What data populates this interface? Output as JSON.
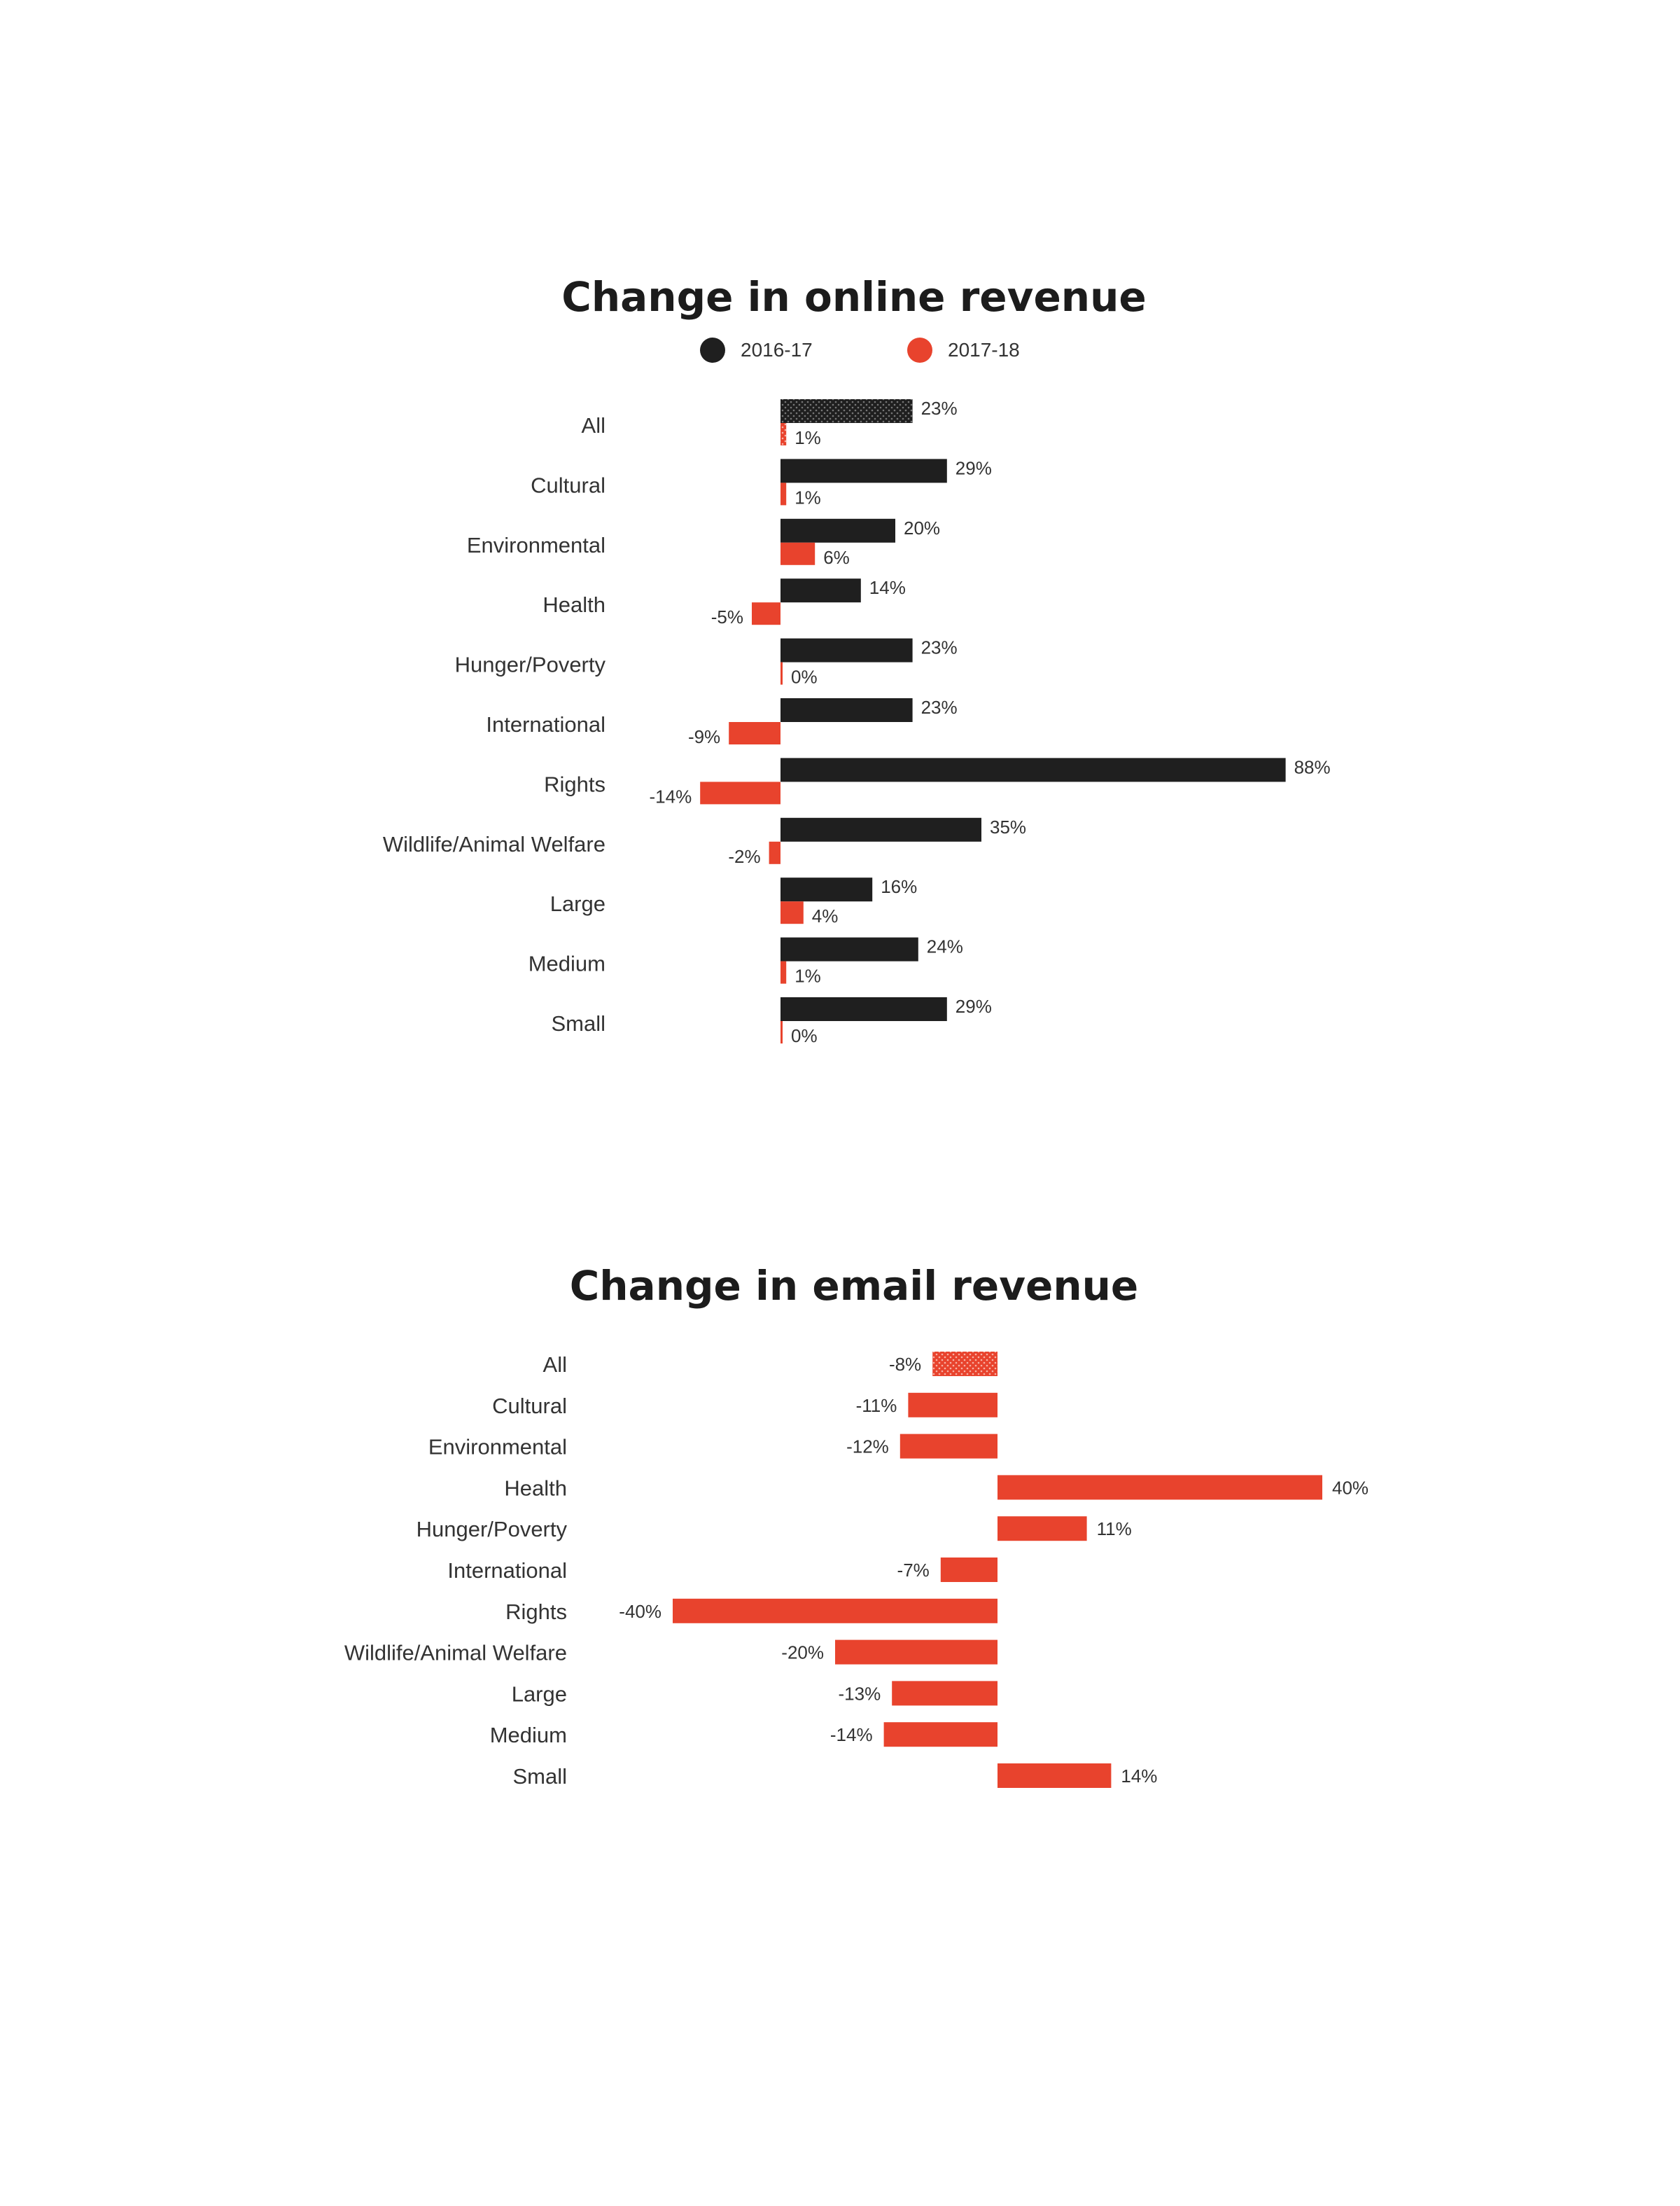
{
  "chart_data": [
    {
      "type": "bar",
      "title": "Change in online revenue",
      "orientation": "horizontal",
      "categories": [
        "All",
        "Cultural",
        "Environmental",
        "Health",
        "Hunger/Poverty",
        "International",
        "Rights",
        "Wildlife/Animal Welfare",
        "Large",
        "Medium",
        "Small"
      ],
      "series": [
        {
          "name": "2016-17",
          "color": "#1f1f1f",
          "values": [
            23,
            29,
            20,
            14,
            23,
            23,
            88,
            35,
            16,
            24,
            29
          ],
          "labels": [
            "23%",
            "29%",
            "20%",
            "14%",
            "23%",
            "23%",
            "88%",
            "35%",
            "16%",
            "24%",
            "29%"
          ]
        },
        {
          "name": "2017-18",
          "color": "#e8432d",
          "values": [
            1,
            1,
            6,
            -5,
            0,
            -9,
            -14,
            -2,
            4,
            1,
            0
          ],
          "labels": [
            "1%",
            "1%",
            "6%",
            "-5%",
            "0%",
            "-9%",
            "-14%",
            "-2%",
            "4%",
            "1%",
            "0%"
          ]
        }
      ],
      "patterned_category": "All",
      "legend": "top-center",
      "xlim": [
        -25,
        100
      ]
    },
    {
      "type": "bar",
      "title": "Change in email revenue",
      "orientation": "horizontal",
      "categories": [
        "All",
        "Cultural",
        "Environmental",
        "Health",
        "Hunger/Poverty",
        "International",
        "Rights",
        "Wildlife/Animal Welfare",
        "Large",
        "Medium",
        "Small"
      ],
      "series": [
        {
          "color": "#e8432d",
          "values": [
            -8,
            -11,
            -12,
            40,
            11,
            -7,
            -40,
            -20,
            -13,
            -14,
            14
          ],
          "labels": [
            "-8%",
            "-11%",
            "-12%",
            "40%",
            "11%",
            "-7%",
            "-40%",
            "-20%",
            "-13%",
            "-14%",
            "14%"
          ]
        }
      ],
      "patterned_category": "All",
      "xlim": [
        -50,
        55
      ]
    }
  ]
}
